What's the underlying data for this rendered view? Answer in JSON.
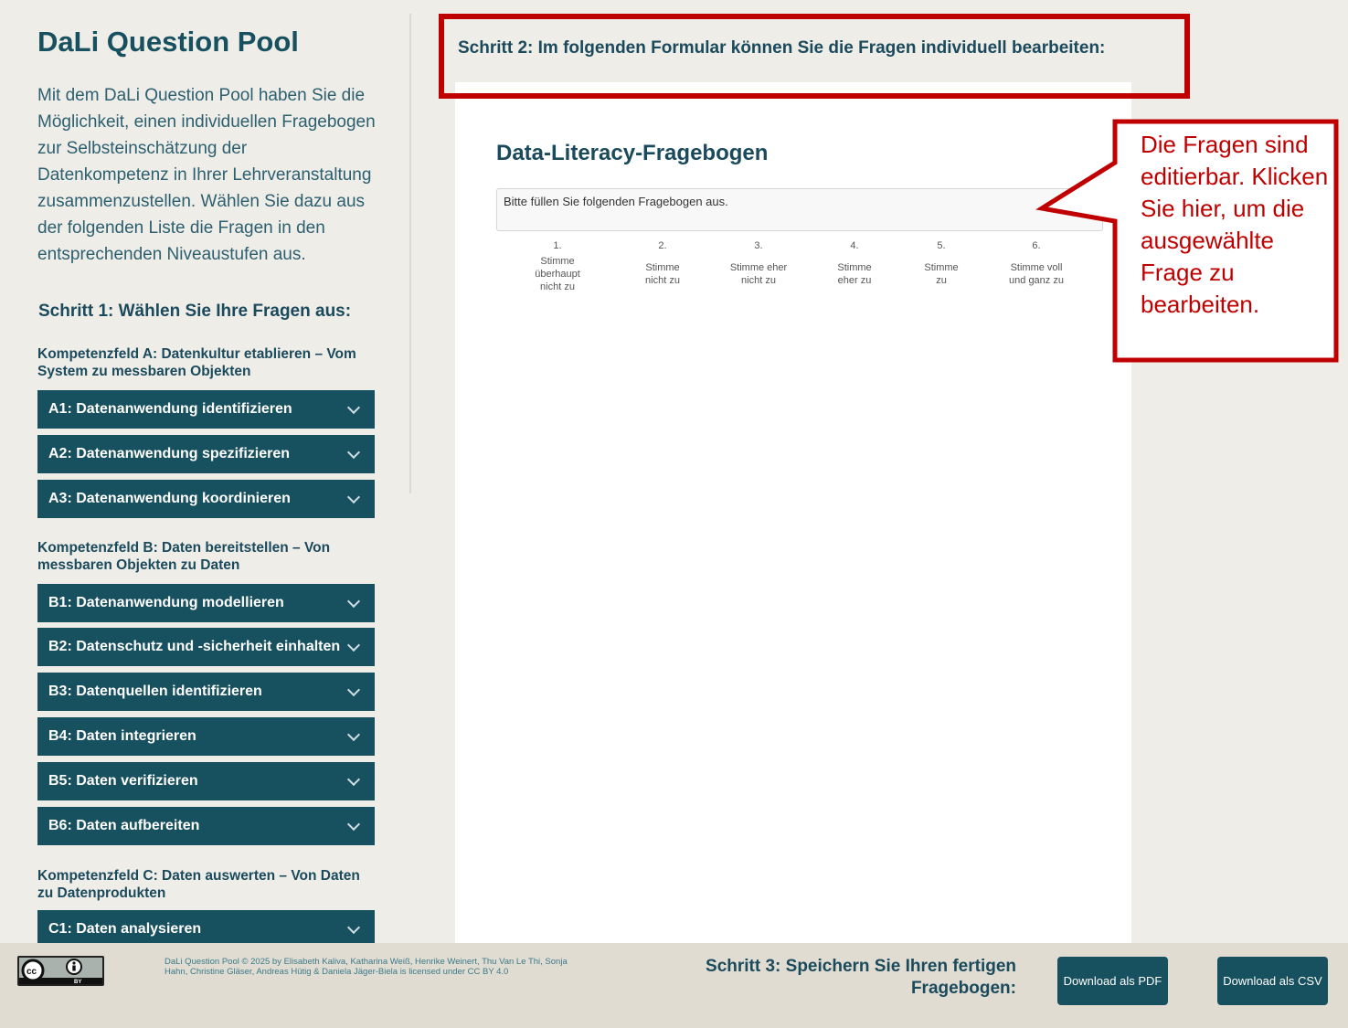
{
  "sidebar": {
    "title": "DaLi Question Pool",
    "intro": "Mit dem DaLi Question Pool haben Sie die Möglichkeit, einen individuellen Fragebogen zur Selbsteinschätzung der Datenkompetenz in Ihrer Lehrveranstaltung zusammenzustellen. Wählen Sie dazu aus der folgenden Liste die Fragen in den entsprechenden Niveaustufen aus.",
    "step1": "Schritt 1: Wählen Sie Ihre Fragen aus:",
    "groups": [
      {
        "label": "Kompetenzfeld A: Datenkultur etablieren – Vom System zu messbaren Objekten",
        "items": [
          "A1: Datenanwendung identifizieren",
          "A2: Datenanwendung spezifizieren",
          "A3: Datenanwendung koordinieren"
        ]
      },
      {
        "label": "Kompetenzfeld B: Daten bereitstellen – Von messbaren Objekten zu Daten",
        "items": [
          "B1: Datenanwendung modellieren",
          "B2: Datenschutz und -sicherheit einhalten",
          "B3: Datenquellen identifizieren",
          "B4: Daten integrieren",
          "B5: Daten verifizieren",
          "B6: Daten aufbereiten"
        ]
      },
      {
        "label": "Kompetenzfeld C: Daten auswerten – Von Daten zu Datenprodukten",
        "items": [
          "C1: Daten analysieren"
        ]
      }
    ]
  },
  "main": {
    "step2": "Schritt 2: Im folgenden Formular können Sie die Fragen individuell bearbeiten:",
    "form_title": "Data-Literacy-Fragebogen",
    "instruction": "Bitte füllen Sie folgenden Fragebogen aus.",
    "scale": [
      {
        "num": "1.",
        "label": "Stimme überhaupt nicht zu"
      },
      {
        "num": "2.",
        "label": "Stimme nicht zu"
      },
      {
        "num": "3.",
        "label": "Stimme eher nicht zu"
      },
      {
        "num": "4.",
        "label": "Stimme eher zu"
      },
      {
        "num": "5.",
        "label": "Stimme zu"
      },
      {
        "num": "6.",
        "label": "Stimme voll und ganz zu"
      }
    ]
  },
  "annotation": {
    "callout": "Die Fragen sind editierbar. Klicken Sie hier, um die ausgewählte Frage zu bearbeiten.",
    "color": "#c00000"
  },
  "footer": {
    "license_logo": "CC BY",
    "license": "DaLi Question Pool © 2025 by Elisabeth Kaliva, Katharina Weiß, Henrike Weinert, Thu Van Le Thi, Sonja Hahn, Christine Gläser, Andreas Hütig & Daniela Jäger-Biela is licensed under CC BY 4.0",
    "step3": "Schritt 3: Speichern Sie Ihren fertigen Fragebogen:",
    "download_pdf": "Download als PDF",
    "download_csv": "Download als CSV"
  },
  "colors": {
    "accent": "#17505f",
    "background": "#efede8",
    "footer": "#e0dcd2"
  }
}
